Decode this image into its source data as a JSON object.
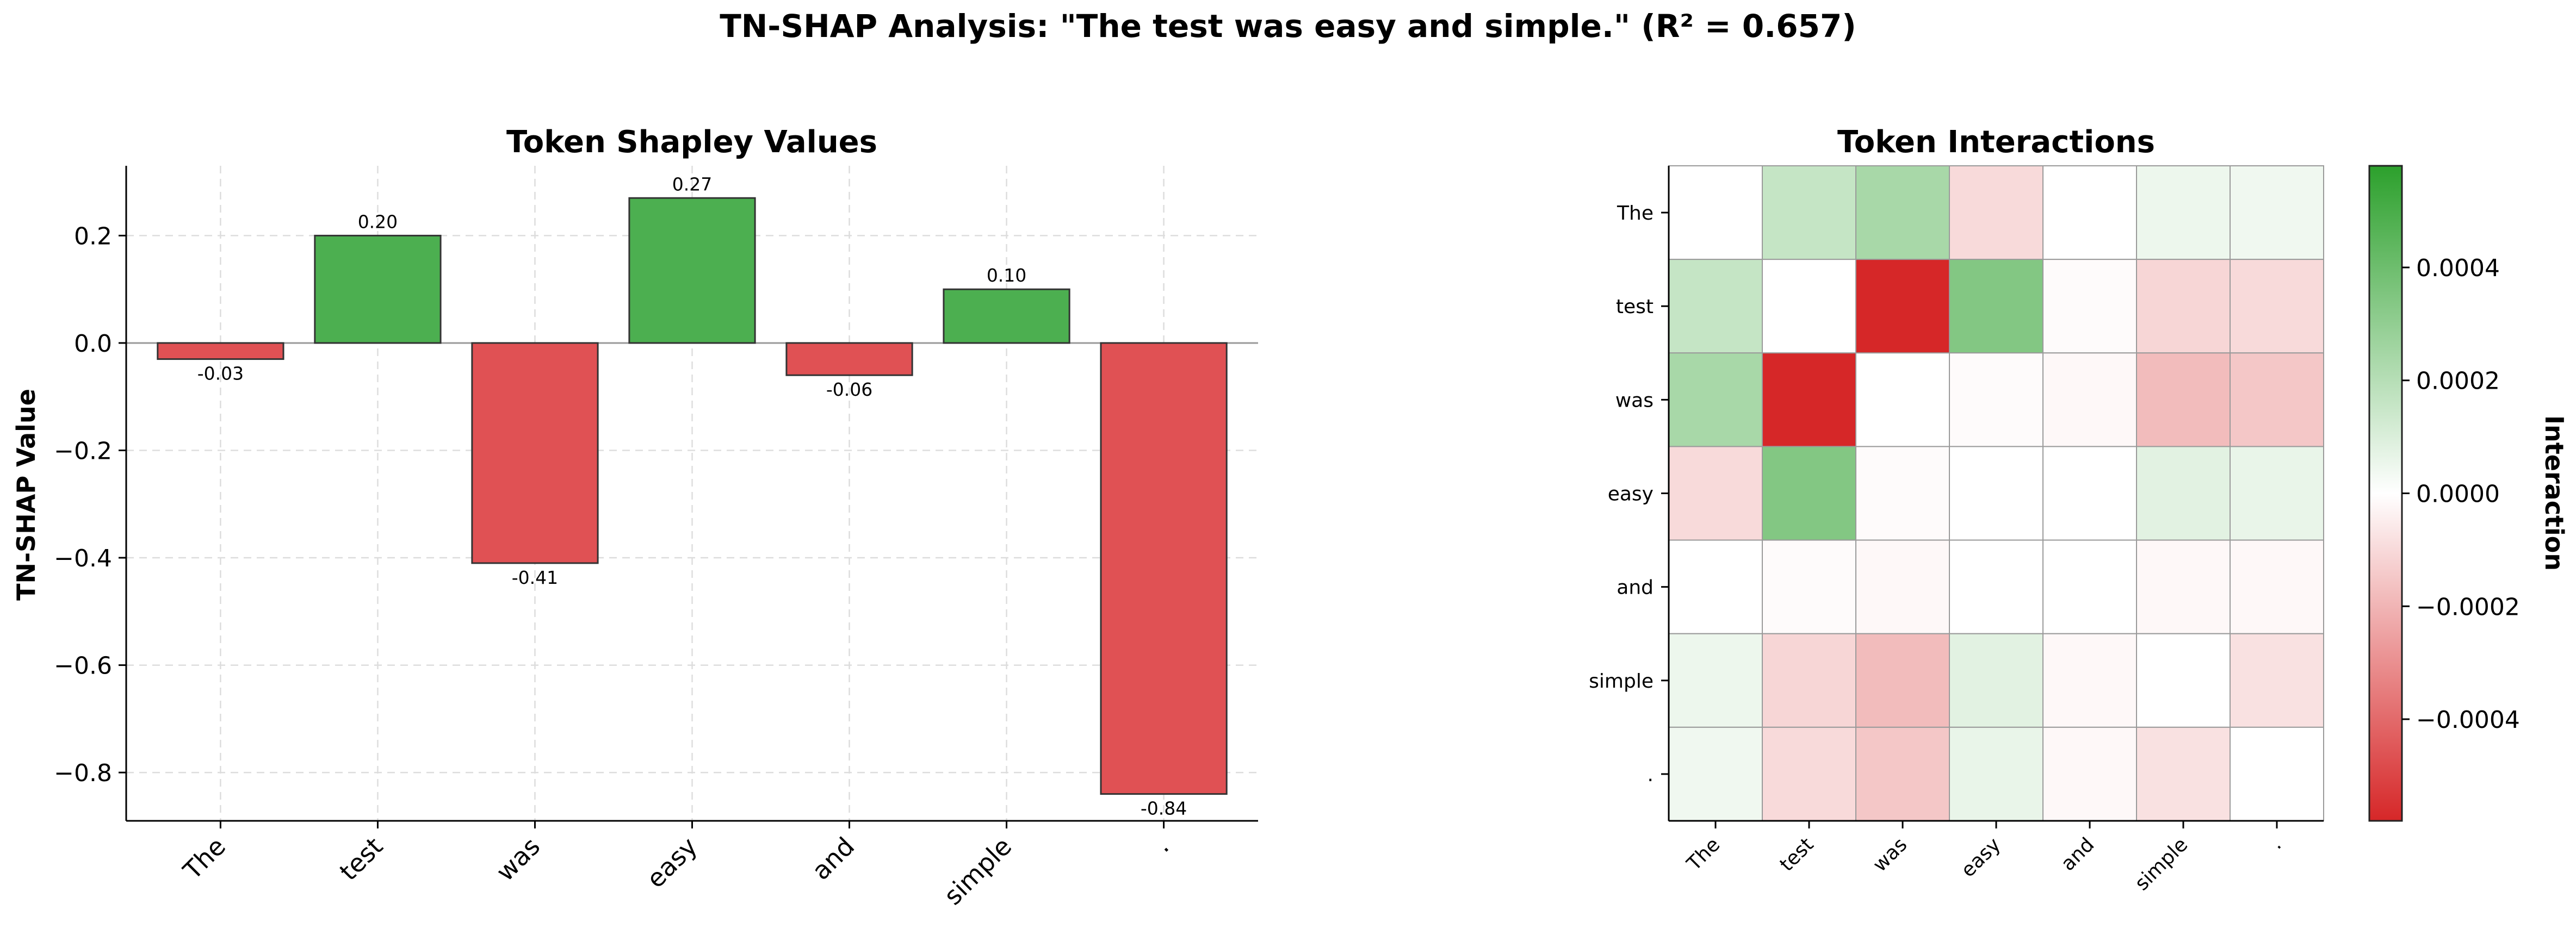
{
  "figure": {
    "suptitle": "TN-SHAP Analysis: \"The test was easy and simple.\" (R² = 0.657)"
  },
  "colors": {
    "positive": "#4caf50",
    "negative": "#e05154",
    "edge": "#333333",
    "heat_neg": "#d62728",
    "heat_pos": "#2ca02c",
    "grid": "#dddddd"
  },
  "chart_data": [
    {
      "type": "bar",
      "title": "Token Shapley Values",
      "xlabel": "",
      "ylabel": "TN-SHAP Value",
      "categories": [
        "The",
        "test",
        "was",
        "easy",
        "and",
        "simple",
        "."
      ],
      "values": [
        -0.03,
        0.2,
        -0.41,
        0.27,
        -0.06,
        0.1,
        -0.84
      ],
      "value_labels": [
        "-0.03",
        "0.20",
        "-0.41",
        "0.27",
        "-0.06",
        "0.10",
        "-0.84"
      ],
      "ylim": [
        -0.89,
        0.33
      ],
      "yticks": [
        0.2,
        0.0,
        -0.2,
        -0.4,
        -0.6,
        -0.8
      ],
      "ytick_labels": [
        "0.2",
        "0.0",
        "−0.2",
        "−0.4",
        "−0.6",
        "−0.8"
      ],
      "grid": true
    },
    {
      "type": "heatmap",
      "title": "Token Interactions",
      "x_labels": [
        "The",
        "test",
        "was",
        "easy",
        "and",
        "simple",
        "."
      ],
      "y_labels": [
        "The",
        "test",
        "was",
        "easy",
        "and",
        "simple",
        "."
      ],
      "values": [
        [
          0.0,
          0.00016,
          0.00024,
          -0.0001,
          0.0,
          5e-05,
          4e-05
        ],
        [
          0.00016,
          0.0,
          -0.00058,
          0.00034,
          -1e-05,
          -0.00011,
          -0.0001
        ],
        [
          0.00024,
          -0.00058,
          0.0,
          -1e-05,
          -2e-05,
          -0.00018,
          -0.00015
        ],
        [
          -0.0001,
          0.00034,
          -1e-05,
          0.0,
          0.0,
          8e-05,
          6e-05
        ],
        [
          0.0,
          -1e-05,
          -2e-05,
          0.0,
          0.0,
          -2e-05,
          -2e-05
        ],
        [
          5e-05,
          -0.00011,
          -0.00018,
          8e-05,
          -2e-05,
          0.0,
          -8e-05
        ],
        [
          4e-05,
          -0.0001,
          -0.00015,
          6e-05,
          -2e-05,
          -8e-05,
          0.0
        ]
      ],
      "vmin": -0.00058,
      "vmax": 0.00058,
      "colorbar": {
        "label": "Interaction",
        "ticks": [
          0.0004,
          0.0002,
          0.0,
          -0.0002,
          -0.0004
        ],
        "tick_labels": [
          "0.0004",
          "0.0002",
          "0.0000",
          "−0.0002",
          "−0.0004"
        ]
      }
    }
  ]
}
